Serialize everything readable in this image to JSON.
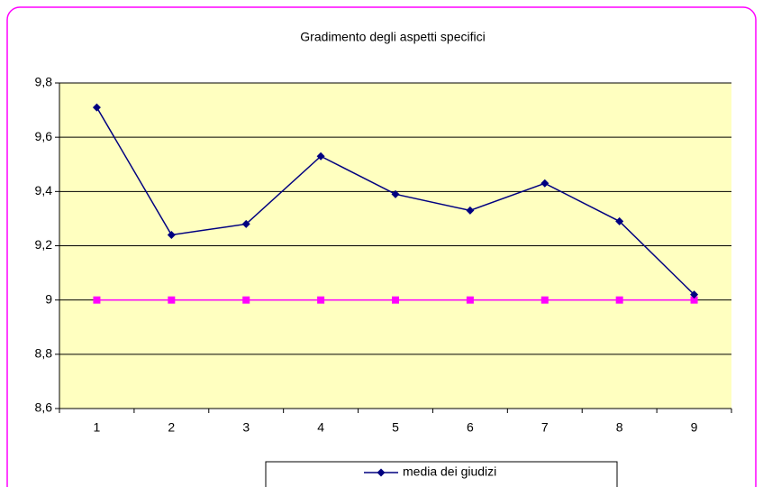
{
  "chart_data": {
    "type": "line",
    "title": "Gradimento degli aspetti specifici",
    "categories": [
      "1",
      "2",
      "3",
      "4",
      "5",
      "6",
      "7",
      "8",
      "9"
    ],
    "series": [
      {
        "name": "media dei giudizi",
        "color": "#000080",
        "marker": "diamond",
        "values": [
          9.71,
          9.24,
          9.28,
          9.53,
          9.39,
          9.33,
          9.43,
          9.29,
          9.02
        ]
      },
      {
        "color": "#ff00ff",
        "marker": "square",
        "values": [
          9,
          9,
          9,
          9,
          9,
          9,
          9,
          9,
          9
        ]
      }
    ],
    "ylim": [
      8.6,
      9.8
    ],
    "yticks": [
      {
        "value": 8.6,
        "label": "8,6"
      },
      {
        "value": 8.8,
        "label": "8,8"
      },
      9,
      {
        "value": 9.2,
        "label": "9,2"
      },
      {
        "value": 9.4,
        "label": "9,4"
      },
      {
        "value": 9.6,
        "label": "9,6"
      },
      {
        "value": 9.8,
        "label": "9,8"
      }
    ],
    "grid": true,
    "legend": "bottom"
  }
}
